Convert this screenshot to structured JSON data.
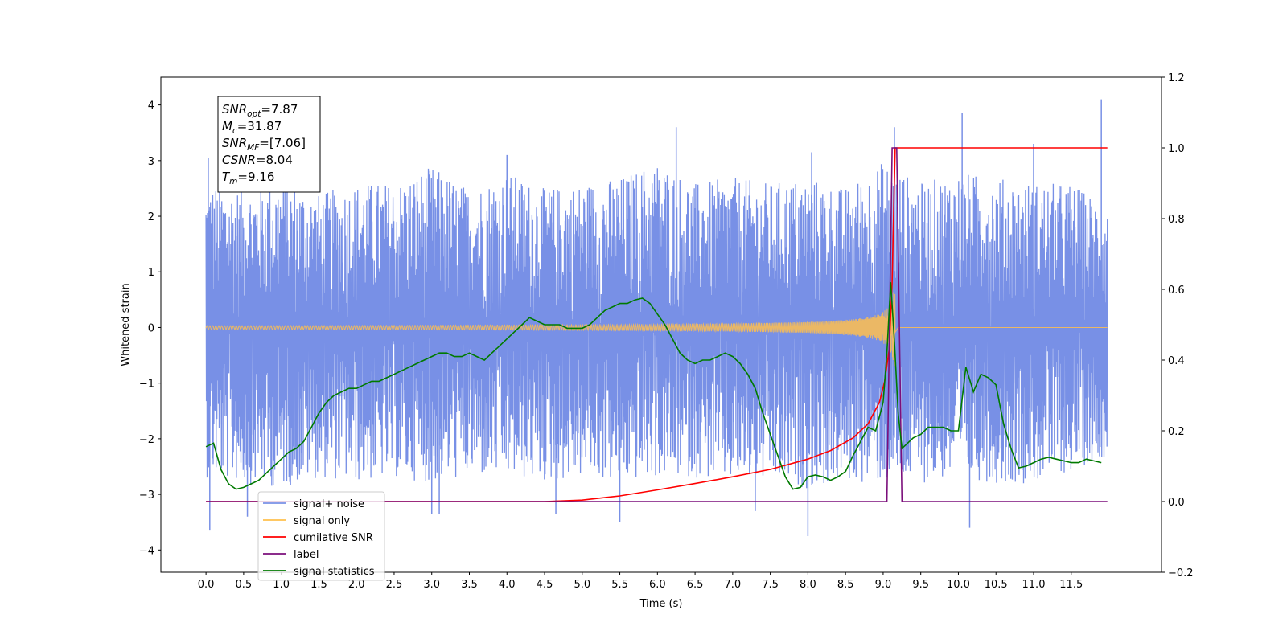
{
  "chart_data": {
    "type": "line",
    "xlabel": "Time (s)",
    "ylabel": "Whitened strain",
    "xlim": [
      -0.6,
      12.7
    ],
    "ylim": [
      -4.4,
      4.5
    ],
    "y2lim": [
      -0.2,
      1.2
    ],
    "x_ticks": [
      0.0,
      0.5,
      1.0,
      1.5,
      2.0,
      2.5,
      3.0,
      3.5,
      4.0,
      4.5,
      5.0,
      5.5,
      6.0,
      6.5,
      7.0,
      7.5,
      8.0,
      8.5,
      9.0,
      9.5,
      10.0,
      10.5,
      11.0,
      11.5
    ],
    "x_tick_labels": [
      "0.0",
      "0.5",
      "1.0",
      "1.5",
      "2.0",
      "2.5",
      "3.0",
      "3.5",
      "4.0",
      "4.5",
      "5.0",
      "5.5",
      "6.0",
      "6.5",
      "7.0",
      "7.5",
      "8.0",
      "8.5",
      "9.0",
      "9.5",
      "10.0",
      "10.5",
      "11.0",
      "11.5"
    ],
    "y_ticks": [
      -4,
      -3,
      -2,
      -1,
      0,
      1,
      2,
      3,
      4
    ],
    "y_tick_labels": [
      "−4",
      "−3",
      "−2",
      "−1",
      "0",
      "1",
      "2",
      "3",
      "4"
    ],
    "y2_ticks": [
      -0.2,
      0.0,
      0.2,
      0.4,
      0.6,
      0.8,
      1.0,
      1.2
    ],
    "y2_tick_labels": [
      "−0.2",
      "0.0",
      "0.2",
      "0.4",
      "0.6",
      "0.8",
      "1.0",
      "1.2"
    ],
    "grid": false,
    "legend_position": "bottom-left",
    "annotation": {
      "lines": [
        {
          "base": "SNR",
          "sub": "opt",
          "value": "=7.87"
        },
        {
          "base": "M",
          "sub": "c",
          "value": "=31.87"
        },
        {
          "base": "SNR",
          "sub": "MF",
          "value": "=[7.06]"
        },
        {
          "base": "CSNR",
          "sub": "",
          "value": "=8.04"
        },
        {
          "base": "T",
          "sub": "m",
          "value": "=9.16"
        }
      ]
    },
    "series": [
      {
        "name": "signal+ noise",
        "axis": "left",
        "color": "#7890e6",
        "x_range": [
          0.0,
          11.98
        ],
        "envelope": {
          "x": [
            0.0,
            0.5,
            1.0,
            1.5,
            2.0,
            2.5,
            3.0,
            3.5,
            4.0,
            4.5,
            5.0,
            5.5,
            6.0,
            6.5,
            7.0,
            7.5,
            8.0,
            8.5,
            9.0,
            9.5,
            10.0,
            10.5,
            11.0,
            11.5,
            11.98
          ],
          "upper": [
            2.6,
            2.5,
            2.7,
            2.4,
            2.6,
            2.6,
            2.9,
            2.5,
            2.8,
            2.5,
            2.6,
            2.7,
            3.0,
            2.6,
            2.7,
            2.6,
            2.7,
            2.5,
            3.0,
            2.6,
            2.8,
            2.7,
            2.6,
            2.6,
            2.2
          ],
          "lower": [
            -2.7,
            -2.8,
            -2.9,
            -2.7,
            -2.8,
            -2.7,
            -2.8,
            -2.7,
            -2.7,
            -2.8,
            -2.7,
            -2.8,
            -2.7,
            -2.7,
            -2.8,
            -2.8,
            -2.9,
            -2.8,
            -2.8,
            -2.8,
            -2.7,
            -2.8,
            -2.8,
            -2.6,
            -2.3
          ]
        },
        "spikes": [
          [
            0.05,
            -3.65
          ],
          [
            0.03,
            3.05
          ],
          [
            0.55,
            -3.4
          ],
          [
            3.0,
            -3.35
          ],
          [
            3.1,
            -3.35
          ],
          [
            4.0,
            3.1
          ],
          [
            4.65,
            -3.35
          ],
          [
            5.5,
            -3.5
          ],
          [
            6.25,
            3.6
          ],
          [
            7.3,
            -3.3
          ],
          [
            8.0,
            -3.75
          ],
          [
            8.05,
            3.15
          ],
          [
            9.15,
            3.6
          ],
          [
            10.05,
            3.85
          ],
          [
            10.15,
            -3.6
          ],
          [
            11.9,
            4.1
          ],
          [
            11.0,
            3.3
          ]
        ]
      },
      {
        "name": "signal only",
        "axis": "left",
        "color": "#ffc04d",
        "chirp_end": 9.16,
        "chirp_peak": 0.95
      },
      {
        "name": "cumilative SNR",
        "axis": "right",
        "color": "#ff0000",
        "x": [
          0.0,
          4.5,
          5.0,
          5.5,
          6.0,
          6.5,
          7.0,
          7.5,
          8.0,
          8.3,
          8.6,
          8.8,
          8.95,
          9.02,
          9.08,
          9.12,
          9.14,
          9.16,
          9.2,
          11.98
        ],
        "values": [
          0.0,
          0.0,
          0.004,
          0.016,
          0.033,
          0.051,
          0.07,
          0.091,
          0.12,
          0.144,
          0.18,
          0.22,
          0.28,
          0.34,
          0.43,
          0.62,
          0.82,
          1.0,
          1.0,
          1.0
        ]
      },
      {
        "name": "label",
        "axis": "right",
        "color": "#7b0f7b",
        "x": [
          0.0,
          9.05,
          9.12,
          9.18,
          9.25,
          11.98
        ],
        "values": [
          0.0,
          0.0,
          1.0,
          1.0,
          0.0,
          0.0
        ]
      },
      {
        "name": "signal statistics",
        "axis": "right",
        "color": "#007a00",
        "x": [
          0.0,
          0.1,
          0.2,
          0.3,
          0.4,
          0.5,
          0.6,
          0.7,
          0.8,
          0.9,
          1.0,
          1.1,
          1.2,
          1.3,
          1.4,
          1.5,
          1.6,
          1.7,
          1.8,
          1.9,
          2.0,
          2.1,
          2.2,
          2.3,
          2.4,
          2.5,
          2.6,
          2.7,
          2.8,
          2.9,
          3.0,
          3.1,
          3.2,
          3.3,
          3.4,
          3.5,
          3.6,
          3.7,
          3.8,
          3.9,
          4.0,
          4.1,
          4.2,
          4.3,
          4.4,
          4.5,
          4.6,
          4.7,
          4.8,
          4.9,
          5.0,
          5.1,
          5.2,
          5.3,
          5.4,
          5.5,
          5.6,
          5.7,
          5.8,
          5.9,
          6.0,
          6.1,
          6.2,
          6.3,
          6.4,
          6.5,
          6.6,
          6.7,
          6.8,
          6.9,
          7.0,
          7.1,
          7.2,
          7.3,
          7.4,
          7.5,
          7.6,
          7.7,
          7.8,
          7.9,
          8.0,
          8.1,
          8.2,
          8.3,
          8.4,
          8.5,
          8.6,
          8.7,
          8.8,
          8.9,
          9.0,
          9.05,
          9.1,
          9.15,
          9.2,
          9.25,
          9.3,
          9.4,
          9.5,
          9.6,
          9.7,
          9.8,
          9.9,
          10.0,
          10.1,
          10.2,
          10.3,
          10.4,
          10.5,
          10.6,
          10.7,
          10.8,
          10.9,
          11.0,
          11.1,
          11.2,
          11.3,
          11.4,
          11.5,
          11.6,
          11.7,
          11.8,
          11.9
        ],
        "values": [
          0.155,
          0.165,
          0.09,
          0.05,
          0.035,
          0.04,
          0.05,
          0.06,
          0.08,
          0.1,
          0.12,
          0.14,
          0.15,
          0.17,
          0.21,
          0.25,
          0.28,
          0.3,
          0.31,
          0.32,
          0.32,
          0.33,
          0.34,
          0.34,
          0.35,
          0.36,
          0.37,
          0.38,
          0.39,
          0.4,
          0.41,
          0.42,
          0.42,
          0.41,
          0.41,
          0.42,
          0.41,
          0.4,
          0.42,
          0.44,
          0.46,
          0.48,
          0.5,
          0.52,
          0.51,
          0.5,
          0.5,
          0.5,
          0.49,
          0.49,
          0.49,
          0.5,
          0.52,
          0.54,
          0.55,
          0.56,
          0.56,
          0.57,
          0.575,
          0.56,
          0.53,
          0.5,
          0.46,
          0.42,
          0.4,
          0.39,
          0.4,
          0.4,
          0.41,
          0.42,
          0.41,
          0.39,
          0.36,
          0.32,
          0.25,
          0.19,
          0.13,
          0.07,
          0.035,
          0.04,
          0.07,
          0.075,
          0.07,
          0.06,
          0.07,
          0.085,
          0.13,
          0.17,
          0.21,
          0.2,
          0.28,
          0.42,
          0.62,
          0.45,
          0.25,
          0.15,
          0.16,
          0.18,
          0.19,
          0.21,
          0.21,
          0.21,
          0.2,
          0.2,
          0.38,
          0.31,
          0.36,
          0.35,
          0.33,
          0.22,
          0.15,
          0.095,
          0.1,
          0.11,
          0.12,
          0.125,
          0.12,
          0.115,
          0.11,
          0.11,
          0.12,
          0.115,
          0.11
        ]
      }
    ]
  }
}
